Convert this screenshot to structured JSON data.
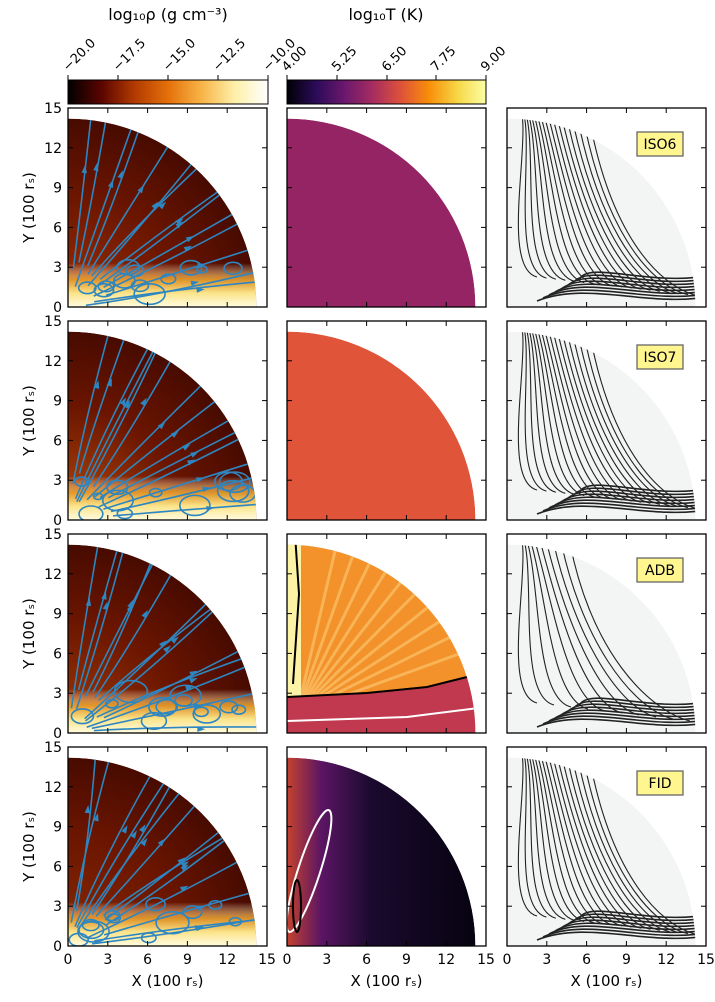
{
  "colorbars": {
    "density": {
      "label": "log₁₀ρ (g cm⁻³)",
      "ticks": [
        "−20.0",
        "−17.5",
        "−15.0",
        "−12.5",
        "−10.0"
      ],
      "range": [
        -20.0,
        -10.0
      ],
      "colormap": "afmhot",
      "stops": [
        "#000000",
        "#5a0500",
        "#b23a00",
        "#e4700a",
        "#f7b446",
        "#fdf0a8",
        "#ffffff"
      ]
    },
    "temperature": {
      "label": "log₁₀T (K)",
      "ticks": [
        "4.00",
        "5.25",
        "6.50",
        "7.75",
        "9.00"
      ],
      "range": [
        4.0,
        9.0
      ],
      "colormap": "inferno",
      "stops": [
        "#000004",
        "#2a0b57",
        "#6a176e",
        "#a52c60",
        "#dd513a",
        "#f98e09",
        "#f6d746",
        "#fcffa4"
      ]
    }
  },
  "axes": {
    "xlabel": "X (100 rₛ)",
    "ylabel": "Y (100 rₛ)",
    "xticks": [
      "0",
      "3",
      "6",
      "9",
      "12",
      "15"
    ],
    "yticks": [
      "0",
      "3",
      "6",
      "9",
      "12",
      "15"
    ],
    "xlim": [
      0,
      15
    ],
    "ylim": [
      0,
      15
    ]
  },
  "chart_data": {
    "type": "heatmap",
    "rows": [
      {
        "model": "ISO6",
        "temperature_log10K": 6.0,
        "temperature_color": "#952464",
        "streamline_color": "#2e86c1",
        "accretion_hue": "#9e2f05"
      },
      {
        "model": "ISO7",
        "temperature_log10K": 7.0,
        "temperature_color": "#e0543a",
        "streamline_color": "#2e86c1",
        "accretion_hue": "#b84a08"
      },
      {
        "model": "ADB",
        "temperature_log10K": null,
        "temperature_color": "#f3912a",
        "streamline_color": "#2e86c1",
        "accretion_hue": "#a13a05"
      },
      {
        "model": "FID",
        "temperature_log10K": null,
        "temperature_color": "#0b0614",
        "streamline_color": "#2e86c1",
        "accretion_hue": "#8a2a03"
      }
    ],
    "domain_radius_100rs": 14.2
  }
}
